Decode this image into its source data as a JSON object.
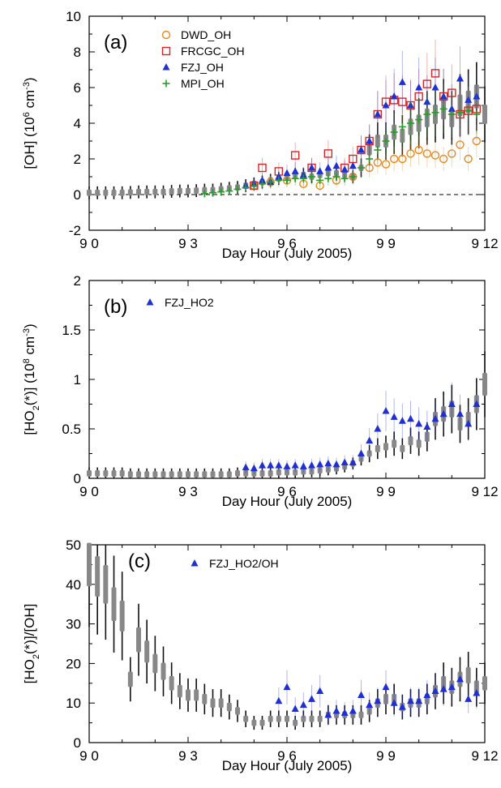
{
  "chart_data": [
    {
      "type": "scatter",
      "panel_label": "(a)",
      "xlabel": "Day Hour (July 2005)",
      "ylabel": "[OH] (10^6 cm^-3)",
      "x_tick_labels": [
        "9 0",
        "9 3",
        "9 6",
        "9 9",
        "9 12"
      ],
      "y_tick_labels": [
        "-2",
        "0",
        "2",
        "4",
        "6",
        "8",
        "10"
      ],
      "xlim": [
        0,
        12
      ],
      "ylim": [
        -2,
        10
      ],
      "legend_position": "top-left",
      "zero_line": true,
      "model": {
        "x": [
          0,
          0.25,
          0.5,
          0.75,
          1,
          1.25,
          1.5,
          1.75,
          2,
          2.25,
          2.5,
          2.75,
          3,
          3.25,
          3.5,
          3.75,
          4,
          4.25,
          4.5,
          4.75,
          5,
          5.25,
          5.5,
          5.75,
          6,
          6.25,
          6.5,
          6.75,
          7,
          7.25,
          7.5,
          7.75,
          8,
          8.25,
          8.5,
          8.75,
          9,
          9.25,
          9.5,
          9.75,
          10,
          10.25,
          10.5,
          10.75,
          11,
          11.25,
          11.5,
          11.75,
          12
        ],
        "y": [
          0.1,
          0.1,
          0.1,
          0.1,
          0.1,
          0.12,
          0.15,
          0.15,
          0.15,
          0.15,
          0.18,
          0.2,
          0.2,
          0.22,
          0.25,
          0.25,
          0.3,
          0.35,
          0.4,
          0.5,
          0.6,
          0.7,
          0.8,
          0.9,
          1.0,
          1.1,
          1.1,
          1.0,
          1.1,
          1.2,
          1.2,
          1.1,
          1.0,
          1.5,
          2.5,
          3.0,
          3.0,
          3.5,
          3.3,
          3.8,
          4.0,
          4.3,
          4.5,
          4.8,
          4.3,
          5.0,
          5.2,
          5.5,
          4.5
        ]
      },
      "series": [
        {
          "name": "DWD_OH",
          "color": "#e8891e",
          "marker": "circle",
          "x": [
            5.0,
            5.5,
            6.0,
            6.5,
            7.0,
            7.5,
            8.0,
            8.5,
            8.75,
            9.0,
            9.25,
            9.5,
            9.75,
            10.0,
            10.25,
            10.5,
            10.75,
            11.0,
            11.25,
            11.5,
            11.75
          ],
          "y": [
            0.5,
            0.7,
            0.8,
            0.6,
            0.5,
            0.8,
            1.0,
            1.5,
            1.8,
            1.7,
            2.0,
            2.0,
            2.3,
            2.5,
            2.3,
            2.2,
            2.0,
            2.3,
            2.8,
            2.0,
            3.0
          ]
        },
        {
          "name": "FRCGC_OH",
          "color": "#dd2222",
          "marker": "square",
          "x": [
            5.0,
            5.25,
            5.75,
            6.25,
            6.75,
            7.25,
            7.75,
            8.0,
            8.25,
            8.5,
            8.75,
            9.0,
            9.25,
            9.5,
            9.75,
            10.0,
            10.25,
            10.5,
            10.75,
            11.0,
            11.25,
            11.5,
            11.75
          ],
          "y": [
            0.5,
            1.5,
            1.3,
            2.2,
            1.5,
            2.3,
            1.5,
            2.0,
            2.5,
            3.0,
            4.5,
            5.2,
            5.3,
            5.2,
            5.0,
            5.5,
            6.2,
            6.8,
            5.5,
            5.7,
            4.5,
            4.7,
            4.8
          ]
        },
        {
          "name": "FZJ_OH",
          "color": "#1f2fd6",
          "marker": "triangle",
          "x": [
            4.75,
            5.0,
            5.25,
            5.5,
            5.75,
            6.0,
            6.25,
            6.5,
            6.75,
            7.0,
            7.25,
            7.5,
            7.75,
            8.0,
            8.25,
            8.5,
            8.75,
            9.0,
            9.25,
            9.5,
            9.75,
            10.0,
            10.25,
            10.5,
            10.75,
            11.0,
            11.25,
            11.5,
            11.75
          ],
          "y": [
            0.5,
            0.6,
            0.8,
            0.7,
            1.0,
            1.2,
            1.3,
            1.1,
            1.5,
            1.3,
            1.5,
            1.6,
            1.4,
            1.6,
            2.5,
            3.0,
            4.5,
            5.0,
            5.5,
            6.3,
            5.0,
            6.0,
            5.2,
            6.0,
            5.5,
            4.8,
            6.5,
            5.3,
            5.5
          ]
        },
        {
          "name": "MPI_OH",
          "color": "#2a9a2a",
          "marker": "plus",
          "x": [
            3.5,
            3.75,
            4.0,
            4.25,
            4.5,
            4.75,
            5.0,
            5.25,
            5.5,
            5.75,
            6.0,
            6.25,
            6.5,
            6.75,
            7.0,
            7.25,
            7.5,
            7.75,
            8.0,
            8.25,
            8.5,
            8.75,
            9.0,
            9.25,
            9.5,
            9.75,
            10.0,
            10.25,
            10.5,
            10.75,
            11.0,
            11.25,
            11.5,
            11.75
          ],
          "y": [
            0.05,
            0.1,
            0.15,
            0.2,
            0.3,
            0.4,
            0.5,
            0.6,
            0.7,
            0.8,
            0.8,
            0.9,
            0.9,
            1.0,
            0.8,
            0.9,
            1.0,
            0.9,
            1.0,
            1.5,
            2.0,
            2.5,
            3.0,
            3.5,
            3.8,
            4.0,
            4.2,
            4.5,
            4.6,
            4.8,
            4.5,
            4.6,
            4.7,
            4.5
          ]
        }
      ]
    },
    {
      "type": "scatter",
      "panel_label": "(b)",
      "xlabel": "Day Hour (July 2005)",
      "ylabel": "[HO2(*)] (10^8 cm^-3)",
      "x_tick_labels": [
        "9 0",
        "9 3",
        "9 6",
        "9 9",
        "9 12"
      ],
      "y_tick_labels": [
        "0",
        "0.5",
        "1",
        "1.5",
        "2"
      ],
      "xlim": [
        0,
        12
      ],
      "ylim": [
        0,
        2
      ],
      "legend_position": "top-left",
      "model": {
        "x": [
          0,
          0.25,
          0.5,
          0.75,
          1,
          1.25,
          1.5,
          1.75,
          2,
          2.25,
          2.5,
          2.75,
          3,
          3.25,
          3.5,
          3.75,
          4,
          4.25,
          4.5,
          4.75,
          5,
          5.25,
          5.5,
          5.75,
          6,
          6.25,
          6.5,
          6.75,
          7,
          7.25,
          7.5,
          7.75,
          8,
          8.25,
          8.5,
          8.75,
          9,
          9.25,
          9.5,
          9.75,
          10,
          10.25,
          10.5,
          10.75,
          11,
          11.25,
          11.5,
          11.75,
          12
        ],
        "y": [
          0.05,
          0.05,
          0.05,
          0.05,
          0.05,
          0.04,
          0.04,
          0.04,
          0.04,
          0.04,
          0.04,
          0.04,
          0.04,
          0.04,
          0.04,
          0.04,
          0.04,
          0.04,
          0.05,
          0.05,
          0.05,
          0.05,
          0.05,
          0.06,
          0.06,
          0.06,
          0.07,
          0.07,
          0.08,
          0.09,
          0.1,
          0.12,
          0.15,
          0.2,
          0.25,
          0.3,
          0.32,
          0.35,
          0.3,
          0.38,
          0.35,
          0.42,
          0.6,
          0.65,
          0.7,
          0.55,
          0.6,
          0.75,
          0.95
        ]
      },
      "series": [
        {
          "name": "FZJ_HO2",
          "color": "#1f2fd6",
          "marker": "triangle",
          "x": [
            4.75,
            5.0,
            5.25,
            5.5,
            5.75,
            6.0,
            6.25,
            6.5,
            6.75,
            7.0,
            7.25,
            7.5,
            7.75,
            8.0,
            8.25,
            8.5,
            8.75,
            9.0,
            9.25,
            9.5,
            9.75,
            10.0,
            10.25,
            10.5,
            10.75,
            11.0,
            11.25,
            11.5,
            11.75
          ],
          "y": [
            0.11,
            0.1,
            0.13,
            0.13,
            0.13,
            0.12,
            0.13,
            0.12,
            0.13,
            0.14,
            0.15,
            0.14,
            0.16,
            0.16,
            0.25,
            0.38,
            0.5,
            0.68,
            0.62,
            0.58,
            0.6,
            0.55,
            0.52,
            0.6,
            0.65,
            0.75,
            0.65,
            0.55,
            0.75
          ]
        }
      ]
    },
    {
      "type": "scatter",
      "panel_label": "(c)",
      "xlabel": "Day Hour (July 2005)",
      "ylabel": "[HO2(*)]/[OH]",
      "x_tick_labels": [
        "9 0",
        "9 3",
        "9 6",
        "9 9",
        "9 12"
      ],
      "y_tick_labels": [
        "0",
        "10",
        "20",
        "30",
        "40",
        "50"
      ],
      "xlim": [
        0,
        12
      ],
      "ylim": [
        0,
        50
      ],
      "legend_position": "top-center",
      "model": {
        "x": [
          0,
          0.25,
          0.5,
          0.75,
          1,
          1.25,
          1.5,
          1.75,
          2,
          2.25,
          2.5,
          2.75,
          3,
          3.25,
          3.5,
          3.75,
          4,
          4.25,
          4.5,
          4.75,
          5,
          5.25,
          5.5,
          5.75,
          6,
          6.25,
          6.5,
          6.75,
          7,
          7.25,
          7.5,
          7.75,
          8,
          8.25,
          8.5,
          8.75,
          9,
          9.25,
          9.5,
          9.75,
          10,
          10.25,
          10.5,
          10.75,
          11,
          11.25,
          11.5,
          11.75,
          12
        ],
        "y": [
          45,
          42,
          40,
          35,
          32,
          16,
          26,
          23,
          20,
          18,
          15,
          13,
          12,
          12,
          11,
          10,
          10,
          9,
          8,
          6,
          5,
          5,
          6,
          6,
          6,
          5,
          6,
          6,
          6,
          7,
          7,
          7,
          7,
          7,
          8,
          10,
          11,
          11,
          9,
          10,
          10,
          11,
          13,
          15,
          14,
          16,
          17,
          14,
          15
        ]
      },
      "series": [
        {
          "name": "FZJ_HO2/OH",
          "color": "#1f2fd6",
          "marker": "triangle",
          "x": [
            5.75,
            6.0,
            6.25,
            6.5,
            6.75,
            7.0,
            7.25,
            7.5,
            7.75,
            8.0,
            8.25,
            8.5,
            8.75,
            9.0,
            9.25,
            9.5,
            9.75,
            10.0,
            10.25,
            10.5,
            10.75,
            11.0,
            11.25,
            11.5,
            11.75
          ],
          "y": [
            10.5,
            14.0,
            8.5,
            9.5,
            11.0,
            13.0,
            7.0,
            8.0,
            7.5,
            8.0,
            12.0,
            9.5,
            10.5,
            14.0,
            10.0,
            9.0,
            10.5,
            10.5,
            12.0,
            13.0,
            13.5,
            14.0,
            16.0,
            11.0,
            12.5
          ]
        }
      ]
    }
  ]
}
